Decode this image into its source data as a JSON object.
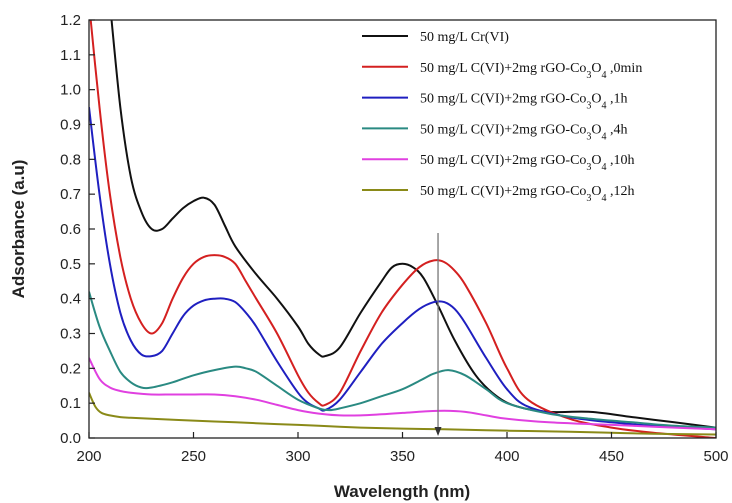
{
  "chart_data": {
    "type": "line",
    "xlabel": "Wavelength (nm)",
    "ylabel": "Adsorbance (a.u)",
    "xlim": [
      200,
      500
    ],
    "ylim": [
      0.0,
      1.2
    ],
    "xticks": [
      200,
      250,
      300,
      350,
      400,
      450,
      500
    ],
    "yticks": [
      0.0,
      0.1,
      0.2,
      0.3,
      0.4,
      0.5,
      0.6,
      0.7,
      0.8,
      0.9,
      1.0,
      1.1,
      1.2
    ],
    "grid": false,
    "legend_position": "top-right",
    "marker_wavelength": 367,
    "series": [
      {
        "name": "50 mg/L Cr(VI)",
        "color": "#111111",
        "x": [
          210,
          215,
          220,
          225,
          230,
          235,
          240,
          245,
          250,
          255,
          260,
          265,
          270,
          280,
          290,
          300,
          305,
          310,
          313,
          320,
          330,
          340,
          345,
          350,
          355,
          360,
          367,
          375,
          385,
          395,
          405,
          420,
          440,
          460,
          480,
          500
        ],
        "y": [
          1.25,
          0.95,
          0.75,
          0.65,
          0.6,
          0.6,
          0.63,
          0.66,
          0.68,
          0.69,
          0.67,
          0.61,
          0.55,
          0.47,
          0.4,
          0.32,
          0.27,
          0.24,
          0.235,
          0.26,
          0.36,
          0.45,
          0.49,
          0.5,
          0.49,
          0.46,
          0.38,
          0.28,
          0.18,
          0.12,
          0.09,
          0.075,
          0.075,
          0.06,
          0.045,
          0.03
        ]
      },
      {
        "name": "50 mg/L C(VI)+2mg rGO-Co3O4 ,0min",
        "color": "#d42020",
        "x": [
          200,
          205,
          210,
          215,
          220,
          225,
          230,
          235,
          240,
          245,
          250,
          255,
          260,
          265,
          270,
          275,
          280,
          290,
          300,
          305,
          310,
          313,
          320,
          330,
          340,
          350,
          358,
          365,
          370,
          375,
          380,
          390,
          400,
          410,
          430,
          450,
          470,
          500
        ],
        "y": [
          1.25,
          0.95,
          0.7,
          0.52,
          0.4,
          0.33,
          0.3,
          0.33,
          0.4,
          0.46,
          0.5,
          0.52,
          0.525,
          0.52,
          0.5,
          0.45,
          0.4,
          0.3,
          0.18,
          0.13,
          0.1,
          0.095,
          0.13,
          0.25,
          0.36,
          0.44,
          0.49,
          0.51,
          0.505,
          0.48,
          0.44,
          0.33,
          0.2,
          0.11,
          0.055,
          0.03,
          0.015,
          0.0
        ]
      },
      {
        "name": "50 mg/L C(VI)+2mg rGO-Co3O4 ,1h",
        "color": "#1f1fc0",
        "x": [
          200,
          205,
          210,
          215,
          220,
          225,
          230,
          235,
          240,
          245,
          250,
          255,
          260,
          265,
          270,
          275,
          280,
          290,
          300,
          305,
          310,
          313,
          320,
          330,
          340,
          350,
          358,
          365,
          370,
          375,
          380,
          390,
          400,
          410,
          430,
          450,
          470,
          500
        ],
        "y": [
          0.95,
          0.7,
          0.5,
          0.36,
          0.28,
          0.24,
          0.235,
          0.25,
          0.3,
          0.35,
          0.38,
          0.395,
          0.4,
          0.4,
          0.39,
          0.36,
          0.32,
          0.22,
          0.13,
          0.1,
          0.085,
          0.08,
          0.11,
          0.19,
          0.27,
          0.33,
          0.37,
          0.39,
          0.39,
          0.37,
          0.33,
          0.23,
          0.14,
          0.09,
          0.06,
          0.045,
          0.035,
          0.025
        ]
      },
      {
        "name": "50 mg/L C(VI)+2mg rGO-Co3O4 ,4h",
        "color": "#2a8a82",
        "x": [
          200,
          205,
          210,
          215,
          220,
          225,
          230,
          240,
          250,
          260,
          270,
          275,
          280,
          290,
          300,
          310,
          315,
          320,
          330,
          340,
          350,
          360,
          365,
          372,
          380,
          390,
          400,
          420,
          440,
          460,
          480,
          500
        ],
        "y": [
          0.42,
          0.32,
          0.25,
          0.19,
          0.16,
          0.145,
          0.145,
          0.16,
          0.18,
          0.195,
          0.205,
          0.2,
          0.19,
          0.15,
          0.11,
          0.085,
          0.08,
          0.085,
          0.1,
          0.12,
          0.14,
          0.17,
          0.185,
          0.195,
          0.18,
          0.14,
          0.1,
          0.07,
          0.055,
          0.045,
          0.035,
          0.03
        ]
      },
      {
        "name": "50 mg/L C(VI)+2mg rGO-Co3O4 ,10h",
        "color": "#e040e0",
        "x": [
          200,
          205,
          210,
          215,
          220,
          230,
          240,
          250,
          260,
          270,
          280,
          290,
          300,
          310,
          320,
          330,
          340,
          350,
          360,
          370,
          380,
          390,
          400,
          420,
          440,
          460,
          480,
          500
        ],
        "y": [
          0.23,
          0.17,
          0.145,
          0.135,
          0.13,
          0.125,
          0.125,
          0.125,
          0.125,
          0.12,
          0.11,
          0.095,
          0.08,
          0.07,
          0.065,
          0.065,
          0.068,
          0.072,
          0.076,
          0.078,
          0.075,
          0.065,
          0.055,
          0.045,
          0.04,
          0.035,
          0.03,
          0.025
        ]
      },
      {
        "name": "50 mg/L C(VI)+2mg rGO-Co3O4 ,12h",
        "color": "#8a8a18",
        "x": [
          200,
          203,
          206,
          210,
          215,
          220,
          230,
          250,
          270,
          290,
          310,
          330,
          350,
          370,
          390,
          410,
          430,
          450,
          470,
          500
        ],
        "y": [
          0.13,
          0.09,
          0.072,
          0.065,
          0.06,
          0.058,
          0.055,
          0.05,
          0.045,
          0.04,
          0.035,
          0.03,
          0.027,
          0.025,
          0.022,
          0.02,
          0.018,
          0.015,
          0.012,
          0.01
        ]
      }
    ]
  }
}
